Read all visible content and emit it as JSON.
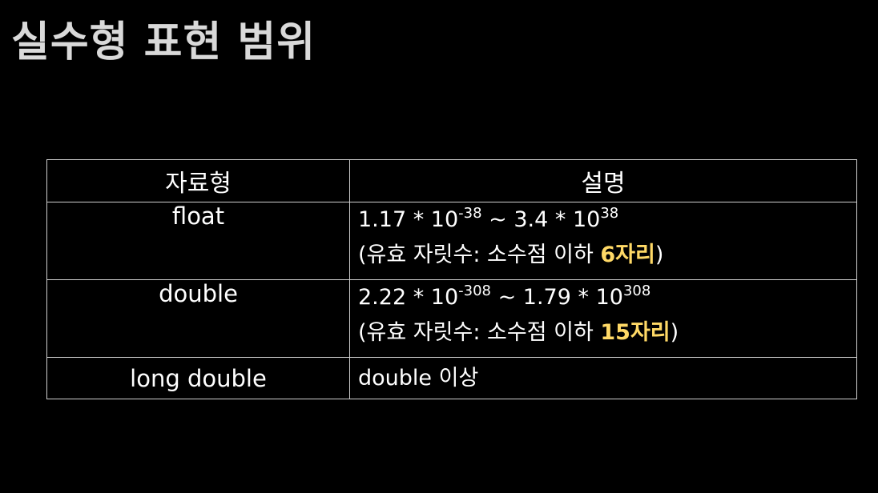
{
  "title": "실수형 표현 범위",
  "table": {
    "headers": [
      "자료형",
      "설명"
    ],
    "rows": [
      {
        "type": "float",
        "range": {
          "min_mantissa": "1.17 * 10",
          "min_exponent": "-38",
          "separator": " ~ ",
          "max_mantissa": "3.4 * 10",
          "max_exponent": "38"
        },
        "precision_prefix": "(유효 자릿수: 소수점 이하 ",
        "precision_highlight": "6자리",
        "precision_suffix": ")"
      },
      {
        "type": "double",
        "range": {
          "min_mantissa": "2.22 * 10",
          "min_exponent": "-308",
          "separator": " ~ ",
          "max_mantissa": "1.79 * 10",
          "max_exponent": "308"
        },
        "precision_prefix": "(유효 자릿수: 소수점 이하 ",
        "precision_highlight": "15자리",
        "precision_suffix": ")"
      },
      {
        "type": "long double",
        "description": "double 이상"
      }
    ]
  },
  "colors": {
    "background": "#000000",
    "title": "#d9d9d9",
    "type_text": "#1aa0ea",
    "highlight": "#ffd966",
    "border": "#d0d0d0"
  }
}
